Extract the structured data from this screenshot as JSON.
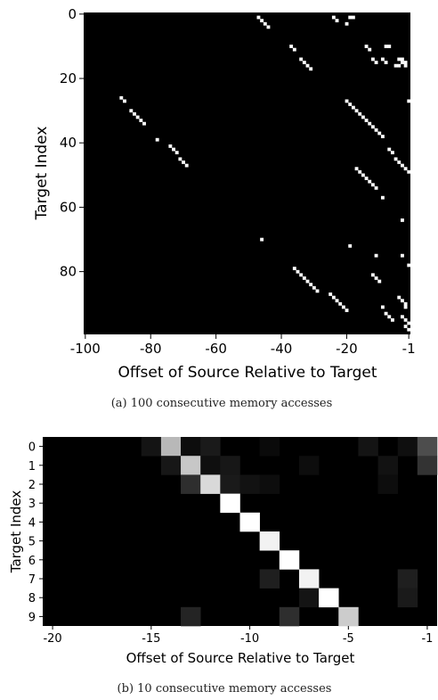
{
  "chart_data": [
    {
      "type": "heatmap",
      "title": "",
      "xlabel": "Offset of Source Relative to Target",
      "ylabel": "Target Index",
      "xlim": [
        -100,
        -1
      ],
      "ylim": [
        0,
        99
      ],
      "xticks": [
        "-100",
        "-80",
        "-60",
        "-40",
        "-20",
        "-1"
      ],
      "yticks": [
        "0",
        "20",
        "40",
        "60",
        "80"
      ],
      "caption": "(a)  100 consecutive memory accesses",
      "colormap": "gray",
      "cells": [
        [
          -47,
          1,
          1
        ],
        [
          -46,
          2,
          1
        ],
        [
          -45,
          3,
          1
        ],
        [
          -44,
          4,
          1
        ],
        [
          -24,
          1,
          1
        ],
        [
          -23,
          2,
          1
        ],
        [
          -20,
          3,
          1
        ],
        [
          -19,
          1,
          1
        ],
        [
          -18,
          1,
          1
        ],
        [
          -37,
          10,
          1
        ],
        [
          -36,
          11,
          1
        ],
        [
          -34,
          14,
          1
        ],
        [
          -33,
          15,
          1
        ],
        [
          -32,
          16,
          1
        ],
        [
          -31,
          17,
          1
        ],
        [
          -14,
          10,
          1
        ],
        [
          -13,
          11,
          1
        ],
        [
          -8,
          10,
          1
        ],
        [
          -7,
          10,
          1
        ],
        [
          -12,
          14,
          1
        ],
        [
          -11,
          15,
          1
        ],
        [
          -9,
          14,
          1
        ],
        [
          -8,
          15,
          1
        ],
        [
          -4,
          14,
          1
        ],
        [
          -3,
          14,
          1
        ],
        [
          -3,
          15,
          1
        ],
        [
          -2,
          15,
          1
        ],
        [
          -2,
          16,
          1
        ],
        [
          -4,
          16,
          1
        ],
        [
          -5,
          16,
          1
        ],
        [
          -1,
          27,
          1
        ],
        [
          -89,
          26,
          1
        ],
        [
          -88,
          27,
          1
        ],
        [
          -86,
          30,
          1
        ],
        [
          -85,
          31,
          1
        ],
        [
          -84,
          32,
          1
        ],
        [
          -83,
          33,
          1
        ],
        [
          -82,
          34,
          1
        ],
        [
          -20,
          27,
          1
        ],
        [
          -19,
          28,
          1
        ],
        [
          -18,
          29,
          1
        ],
        [
          -17,
          30,
          1
        ],
        [
          -16,
          31,
          1
        ],
        [
          -15,
          32,
          1
        ],
        [
          -14,
          33,
          1
        ],
        [
          -13,
          34,
          1
        ],
        [
          -12,
          35,
          1
        ],
        [
          -11,
          36,
          1
        ],
        [
          -10,
          37,
          1
        ],
        [
          -9,
          38,
          1
        ],
        [
          -78,
          39,
          1
        ],
        [
          -74,
          41,
          1
        ],
        [
          -73,
          42,
          1
        ],
        [
          -72,
          43,
          1
        ],
        [
          -71,
          45,
          1
        ],
        [
          -70,
          46,
          1
        ],
        [
          -69,
          47,
          1
        ],
        [
          -7,
          42,
          1
        ],
        [
          -6,
          43,
          1
        ],
        [
          -5,
          45,
          1
        ],
        [
          -4,
          46,
          1
        ],
        [
          -3,
          47,
          1
        ],
        [
          -2,
          48,
          1
        ],
        [
          -1,
          49,
          1
        ],
        [
          -17,
          48,
          1
        ],
        [
          -16,
          49,
          1
        ],
        [
          -15,
          50,
          1
        ],
        [
          -14,
          51,
          1
        ],
        [
          -13,
          52,
          1
        ],
        [
          -12,
          53,
          1
        ],
        [
          -11,
          54,
          1
        ],
        [
          -9,
          57,
          1
        ],
        [
          -3,
          64,
          1
        ],
        [
          -46,
          70,
          1
        ],
        [
          -19,
          72,
          1
        ],
        [
          -11,
          75,
          1
        ],
        [
          -3,
          75,
          1
        ],
        [
          -1,
          78,
          1
        ],
        [
          -36,
          79,
          1
        ],
        [
          -35,
          80,
          1
        ],
        [
          -34,
          81,
          1
        ],
        [
          -33,
          82,
          1
        ],
        [
          -32,
          83,
          1
        ],
        [
          -31,
          84,
          1
        ],
        [
          -30,
          85,
          1
        ],
        [
          -29,
          86,
          1
        ],
        [
          -25,
          87,
          1
        ],
        [
          -24,
          88,
          1
        ],
        [
          -23,
          89,
          1
        ],
        [
          -22,
          90,
          1
        ],
        [
          -21,
          91,
          1
        ],
        [
          -20,
          92,
          1
        ],
        [
          -12,
          81,
          1
        ],
        [
          -11,
          82,
          1
        ],
        [
          -10,
          83,
          1
        ],
        [
          -4,
          88,
          1
        ],
        [
          -3,
          89,
          1
        ],
        [
          -2,
          90,
          1
        ],
        [
          -2,
          91,
          1
        ],
        [
          -9,
          91,
          1
        ],
        [
          -8,
          93,
          1
        ],
        [
          -7,
          94,
          1
        ],
        [
          -6,
          95,
          1
        ],
        [
          -3,
          94,
          1
        ],
        [
          -2,
          95,
          1
        ],
        [
          -1,
          96,
          1
        ],
        [
          -2,
          97,
          1
        ],
        [
          -1,
          98,
          1
        ]
      ]
    },
    {
      "type": "heatmap",
      "title": "",
      "xlabel": "Offset of Source Relative to Target",
      "ylabel": "Target Index",
      "xlim": [
        -20,
        -1
      ],
      "ylim": [
        0,
        9
      ],
      "xticks": [
        "-20",
        "-15",
        "-10",
        "-5",
        "-1"
      ],
      "yticks": [
        "0",
        "1",
        "2",
        "3",
        "4",
        "5",
        "6",
        "7",
        "8",
        "9"
      ],
      "caption": "(b)  10 consecutive memory accesses",
      "colormap": "gray",
      "cells": [
        [
          -15,
          0,
          0.08
        ],
        [
          -14,
          0,
          0.72
        ],
        [
          -13,
          0,
          0.05
        ],
        [
          -12,
          0,
          0.1
        ],
        [
          -9,
          0,
          0.04
        ],
        [
          -4,
          0,
          0.08
        ],
        [
          -2,
          0,
          0.06
        ],
        [
          -1,
          0,
          0.3
        ],
        [
          -14,
          1,
          0.09
        ],
        [
          -13,
          1,
          0.78
        ],
        [
          -12,
          1,
          0.06
        ],
        [
          -11,
          1,
          0.09
        ],
        [
          -7,
          1,
          0.05
        ],
        [
          -3,
          1,
          0.07
        ],
        [
          -1,
          1,
          0.2
        ],
        [
          -13,
          2,
          0.18
        ],
        [
          -12,
          2,
          0.85
        ],
        [
          -11,
          2,
          0.1
        ],
        [
          -10,
          2,
          0.07
        ],
        [
          -9,
          2,
          0.05
        ],
        [
          -3,
          2,
          0.05
        ],
        [
          -11,
          3,
          1.0
        ],
        [
          -10,
          4,
          1.0
        ],
        [
          -9,
          5,
          0.95
        ],
        [
          -8,
          6,
          1.0
        ],
        [
          -9,
          7,
          0.12
        ],
        [
          -7,
          7,
          0.95
        ],
        [
          -2,
          7,
          0.12
        ],
        [
          -7,
          8,
          0.08
        ],
        [
          -6,
          8,
          1.0
        ],
        [
          -2,
          8,
          0.1
        ],
        [
          -13,
          9,
          0.14
        ],
        [
          -8,
          9,
          0.18
        ],
        [
          -5,
          9,
          0.8
        ]
      ]
    }
  ]
}
